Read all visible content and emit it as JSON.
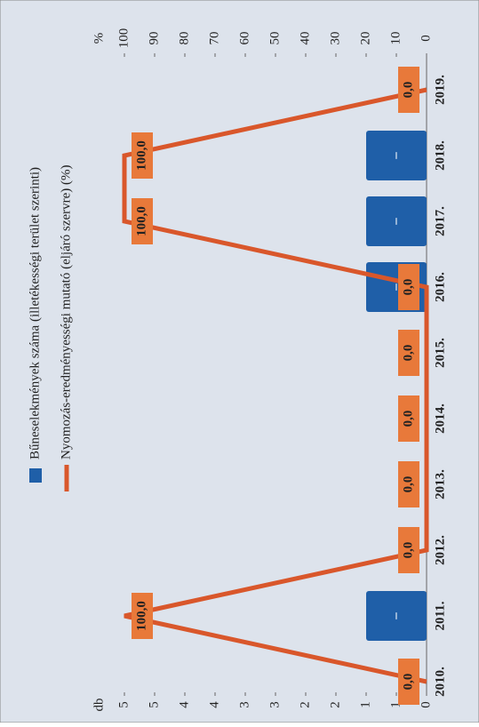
{
  "chart_data": {
    "type": "bar-line",
    "categories": [
      "2010.",
      "2011.",
      "2012.",
      "2013.",
      "2014.",
      "2015.",
      "2016.",
      "2017.",
      "2018.",
      "2019."
    ],
    "y_label": "db",
    "y2_label": "%",
    "ylim": [
      0,
      5
    ],
    "yticks": [
      0,
      {
        "value": 0.5,
        "label": "1"
      },
      1,
      {
        "value": 1.5,
        "label": "2"
      },
      2,
      {
        "value": 2.5,
        "label": "3"
      },
      3,
      {
        "value": 3.5,
        "label": "4"
      },
      4,
      {
        "value": 4.5,
        "label": "5"
      },
      5
    ],
    "y2lim": [
      0,
      100
    ],
    "y2ticks": [
      0,
      10,
      20,
      30,
      40,
      50,
      60,
      70,
      80,
      90,
      100
    ],
    "series": [
      {
        "name": "Bűneselekmények száma (illetékességi terület szerinti)",
        "type": "bar",
        "color": "#1f5fa8",
        "values": [
          null,
          1,
          null,
          null,
          null,
          null,
          1,
          1,
          1,
          null
        ],
        "value_labels": [
          null,
          "–",
          null,
          null,
          null,
          null,
          "–",
          "–",
          "–",
          null
        ]
      },
      {
        "name": "Nyomozás-eredményességi mutató (eljáró szervre) (%)",
        "type": "line",
        "axis": "y2",
        "color": "#d9572b",
        "values": [
          0,
          100,
          0,
          0,
          0,
          0,
          0,
          100,
          100,
          0
        ],
        "value_labels": [
          "0,0",
          "100,0",
          "0,0",
          "0,0",
          "0,0",
          "0,0",
          "0,0",
          "100,0",
          "100,0",
          "0,0"
        ]
      }
    ]
  }
}
